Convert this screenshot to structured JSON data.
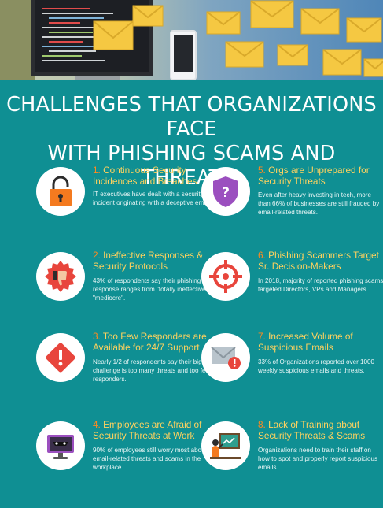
{
  "heading": {
    "line1": "CHALLENGES THAT ORGANIZATIONS FACE",
    "line2": "WITH PHISHING SCAMS AND THREATS:"
  },
  "items": [
    {
      "num": "1.",
      "title": "Continuous Security Incidences and Breaches",
      "desc": "IT executives have dealt with a security incident originating with a deceptive email.",
      "icon": "padlock-icon",
      "color": "#f47a1f"
    },
    {
      "num": "2.",
      "title": "Ineffective Responses & Security Protocols",
      "desc": "43% of respondents say their phishing response ranges from \"totally ineffective\" to \"mediocre\".",
      "icon": "thumbs-down-icon",
      "color": "#e8453c"
    },
    {
      "num": "3.",
      "title": "Too Few Responders are Available for 24/7 Support",
      "desc": "Nearly 1/2 of respondents say their biggest challenge is too many threats and too few responders.",
      "icon": "warning-icon",
      "color": "#e8453c"
    },
    {
      "num": "4.",
      "title": "Employees are Afraid of Security Threats at Work",
      "desc": "90% of employees still worry most about email-related threats and scams in the workplace.",
      "icon": "hacker-monitor-icon",
      "color": "#9b4fbf"
    },
    {
      "num": "5.",
      "title": "Orgs are Unprepared for Security Threats",
      "desc": "Even after heavy investing in tech, more than 66% of businesses are still frauded by email-related threats.",
      "icon": "shield-question-icon",
      "color": "#9b4fbf"
    },
    {
      "num": "6.",
      "title": "Phishing Scammers Target Sr. Decision-Makers",
      "desc": "In 2018, majority of reported phishing scams targeted Directors, VPs and Managers.",
      "icon": "crosshair-icon",
      "color": "#e8453c"
    },
    {
      "num": "7.",
      "title": "Increased Volume of Suspicious Emails",
      "desc": "33% of Organizations reported over 1000 weekly suspicious emails and threats.",
      "icon": "email-alert-icon",
      "color": "#e8453c"
    },
    {
      "num": "8.",
      "title": "Lack of Training about Security Threats & Scams",
      "desc": "Organizations need to train their staff on how to spot and properly report suspicious emails.",
      "icon": "presentation-board-icon",
      "color": "#2f9e8e"
    }
  ]
}
